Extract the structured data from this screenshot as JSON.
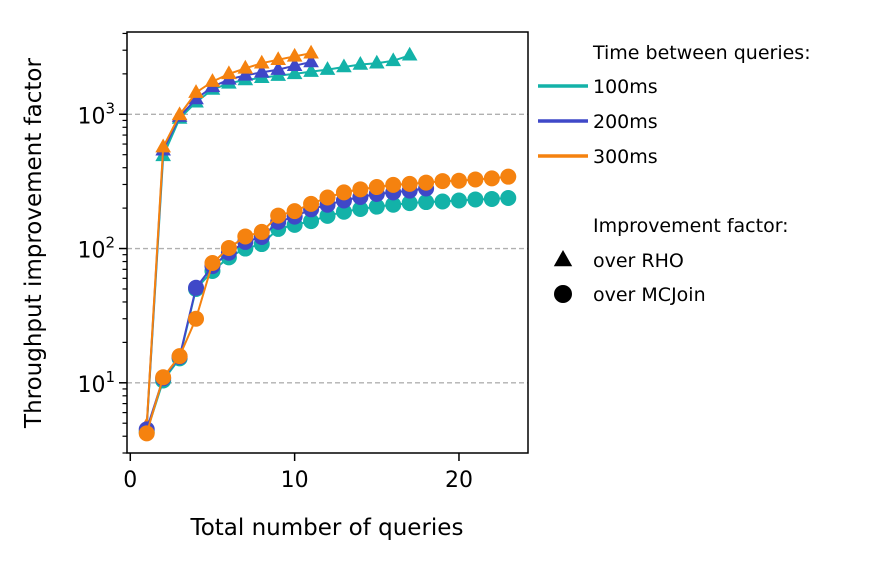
{
  "chart_data": {
    "type": "line",
    "xlabel": "Total number of queries",
    "ylabel": "Throughput improvement factor",
    "y_scale": "log",
    "xlim": [
      -0.2,
      24.2
    ],
    "ylim": [
      3.0,
      4100
    ],
    "x_ticks": [
      {
        "value": 0,
        "label": "0"
      },
      {
        "value": 10,
        "label": "10"
      },
      {
        "value": 20,
        "label": "20"
      }
    ],
    "y_ticks": [
      {
        "value": 10,
        "base": "10",
        "exp": "1"
      },
      {
        "value": 100,
        "base": "10",
        "exp": "2"
      },
      {
        "value": 1000,
        "base": "10",
        "exp": "3"
      }
    ],
    "grid": "horizontal dashed at major y ticks",
    "legend": {
      "placement": "right, outside plot",
      "color_title": "Time between queries:",
      "color_entries": [
        {
          "label": "100ms",
          "color": "#13b2a8"
        },
        {
          "label": "200ms",
          "color": "#3f48c8"
        },
        {
          "label": "300ms",
          "color": "#f5820f"
        }
      ],
      "marker_title": "Improvement factor:",
      "marker_entries": [
        {
          "label": "over RHO",
          "marker": "triangle"
        },
        {
          "label": "over MCJoin",
          "marker": "circle"
        }
      ]
    },
    "series": [
      {
        "interval": "100ms",
        "baseline": "RHO",
        "marker": "triangle",
        "color": "#13b2a8",
        "x": [
          1,
          2,
          3,
          4,
          5,
          6,
          7,
          8,
          9,
          10,
          11,
          12,
          13,
          14,
          15,
          16,
          17
        ],
        "y": [
          4.6,
          490,
          930,
          1230,
          1530,
          1700,
          1800,
          1870,
          1940,
          2000,
          2080,
          2150,
          2250,
          2350,
          2400,
          2500,
          2750
        ]
      },
      {
        "interval": "200ms",
        "baseline": "RHO",
        "marker": "triangle",
        "color": "#3f48c8",
        "x": [
          1,
          2,
          3,
          4,
          5,
          6,
          7,
          8,
          9,
          10,
          11
        ],
        "y": [
          4.7,
          540,
          960,
          1300,
          1600,
          1820,
          1950,
          2050,
          2150,
          2300,
          2450
        ]
      },
      {
        "interval": "300ms",
        "baseline": "RHO",
        "marker": "triangle",
        "color": "#f5820f",
        "x": [
          1,
          2,
          3,
          4,
          5,
          6,
          7,
          8,
          9,
          10,
          11
        ],
        "y": [
          4.8,
          570,
          990,
          1450,
          1750,
          2000,
          2200,
          2400,
          2550,
          2700,
          2850
        ]
      },
      {
        "interval": "100ms",
        "baseline": "MCJoin",
        "marker": "circle",
        "color": "#13b2a8",
        "x": [
          1,
          2,
          3,
          4,
          5,
          6,
          7,
          8,
          9,
          10,
          11,
          12,
          13,
          14,
          15,
          16,
          17,
          18,
          19,
          20,
          21,
          22,
          23
        ],
        "y": [
          4.3,
          10.4,
          15.2,
          50,
          68,
          86,
          100,
          108,
          140,
          150,
          160,
          175,
          188,
          197,
          205,
          212,
          218,
          222,
          224,
          228,
          232,
          234,
          238
        ]
      },
      {
        "interval": "200ms",
        "baseline": "MCJoin",
        "marker": "circle",
        "color": "#3f48c8",
        "x": [
          1,
          2,
          3,
          4,
          5,
          6,
          7,
          8,
          9,
          10,
          11,
          12,
          13,
          14,
          15,
          16,
          17,
          18
        ],
        "y": [
          4.5,
          10.8,
          15.6,
          51,
          74,
          93,
          112,
          122,
          158,
          173,
          196,
          212,
          228,
          242,
          255,
          262,
          270,
          280
        ]
      },
      {
        "interval": "300ms",
        "baseline": "MCJoin",
        "marker": "circle",
        "color": "#f5820f",
        "x": [
          1,
          2,
          3,
          4,
          5,
          6,
          7,
          8,
          9,
          10,
          11,
          12,
          13,
          14,
          15,
          16,
          17,
          18,
          19,
          20,
          21,
          22,
          23
        ],
        "y": [
          4.2,
          11,
          15.8,
          30,
          78,
          101,
          123,
          133,
          176,
          190,
          215,
          240,
          262,
          276,
          287,
          298,
          303,
          310,
          318,
          320,
          327,
          333,
          343
        ]
      }
    ]
  }
}
